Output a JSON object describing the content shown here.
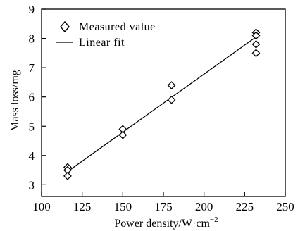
{
  "chart_data": {
    "type": "scatter",
    "title": "",
    "xlabel": "Power density/W·cm",
    "xlabel_superscript": "−2",
    "ylabel": "Mass loss/mg",
    "xlim": [
      100,
      250
    ],
    "ylim": [
      2.6,
      9
    ],
    "xticks": [
      100,
      125,
      150,
      175,
      200,
      225,
      250
    ],
    "yticks": [
      3,
      4,
      5,
      6,
      7,
      8,
      9
    ],
    "grid": false,
    "legend_position": "top-left",
    "series": [
      {
        "name": "Measured value",
        "marker": "diamond",
        "points": [
          {
            "x": 116,
            "y": 3.6
          },
          {
            "x": 116,
            "y": 3.5
          },
          {
            "x": 116,
            "y": 3.3
          },
          {
            "x": 150,
            "y": 4.9
          },
          {
            "x": 150,
            "y": 4.7
          },
          {
            "x": 180,
            "y": 6.4
          },
          {
            "x": 180,
            "y": 5.9
          },
          {
            "x": 232,
            "y": 8.2
          },
          {
            "x": 232,
            "y": 8.1
          },
          {
            "x": 232,
            "y": 7.8
          },
          {
            "x": 232,
            "y": 7.5
          }
        ]
      },
      {
        "name": "Linear fit",
        "style": "line",
        "points": [
          {
            "x": 116,
            "y": 3.45
          },
          {
            "x": 232,
            "y": 8.05
          }
        ]
      }
    ]
  }
}
